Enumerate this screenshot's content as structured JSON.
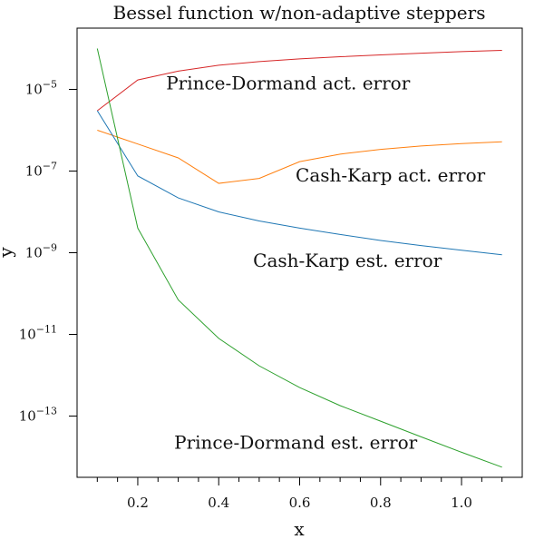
{
  "chart_data": {
    "type": "line",
    "title": "Bessel function w/non-adaptive steppers",
    "xlabel": "x",
    "ylabel": "y",
    "xlim": [
      0.05,
      1.15
    ],
    "ylim_log10": [
      -14.5,
      -3.5
    ],
    "yscale": "log",
    "grid": false,
    "legend": "none",
    "x_major_ticks": [
      0.2,
      0.4,
      0.6,
      0.8,
      1.0
    ],
    "x_tick_labels": [
      "0.2",
      "0.4",
      "0.6",
      "0.8",
      "1.0"
    ],
    "x_minor_ticks": [
      0.1,
      0.15,
      0.25,
      0.3,
      0.35,
      0.45,
      0.5,
      0.55,
      0.65,
      0.7,
      0.75,
      0.85,
      0.9,
      0.95,
      1.05,
      1.1
    ],
    "y_major_ticks": [
      {
        "exp": -5,
        "base": "10",
        "sup": "−5"
      },
      {
        "exp": -7,
        "base": "10",
        "sup": "−7"
      },
      {
        "exp": -9,
        "base": "10",
        "sup": "−9"
      },
      {
        "exp": -11,
        "base": "10",
        "sup": "−11"
      },
      {
        "exp": -13,
        "base": "10",
        "sup": "−13"
      }
    ],
    "series": [
      {
        "color": "#d62728",
        "x": [
          0.1,
          0.2,
          0.3,
          0.4,
          0.5,
          0.6,
          0.7,
          0.8,
          0.9,
          1.0,
          1.1
        ],
        "y": [
          3e-06,
          1.7e-05,
          2.8e-05,
          3.9e-05,
          4.8e-05,
          5.6e-05,
          6.3e-05,
          7e-05,
          7.7e-05,
          8.4e-05,
          9e-05
        ]
      },
      {
        "color": "#ff7f0e",
        "x": [
          0.1,
          0.2,
          0.3,
          0.4,
          0.5,
          0.6,
          0.7,
          0.8,
          0.9,
          1.0,
          1.1
        ],
        "y": [
          1e-06,
          4.6e-07,
          2.1e-07,
          5e-08,
          6.6e-08,
          1.7e-07,
          2.6e-07,
          3.4e-07,
          4.1e-07,
          4.7e-07,
          5.2e-07
        ]
      },
      {
        "color": "#1f77b4",
        "x": [
          0.1,
          0.2,
          0.3,
          0.4,
          0.5,
          0.6,
          0.7,
          0.8,
          0.9,
          1.0,
          1.1
        ],
        "y": [
          3e-06,
          7.6e-08,
          2.2e-08,
          1e-08,
          6e-09,
          4e-09,
          2.8e-09,
          2e-09,
          1.5e-09,
          1.15e-09,
          8.9e-10
        ]
      },
      {
        "color": "#2ca02c",
        "x": [
          0.1,
          0.2,
          0.3,
          0.4,
          0.5,
          0.6,
          0.7,
          0.8,
          0.9,
          1.0,
          1.1
        ],
        "y": [
          0.0001,
          4e-09,
          7e-11,
          8e-12,
          1.7e-12,
          5e-13,
          1.8e-13,
          7.5e-14,
          3.1e-14,
          1.3e-14,
          5.6e-15
        ]
      }
    ],
    "annotations": [
      {
        "text": "Prince-Dormand act. error",
        "x": 0.27,
        "y": 1e-05
      },
      {
        "text": "Cash-Karp act. error",
        "x": 0.59,
        "y": 5.5e-08
      },
      {
        "text": "Cash-Karp est. error",
        "x": 0.485,
        "y": 4.5e-10
      },
      {
        "text": "Prince-Dormand est. error",
        "x": 0.29,
        "y": 1.6e-14
      }
    ]
  }
}
